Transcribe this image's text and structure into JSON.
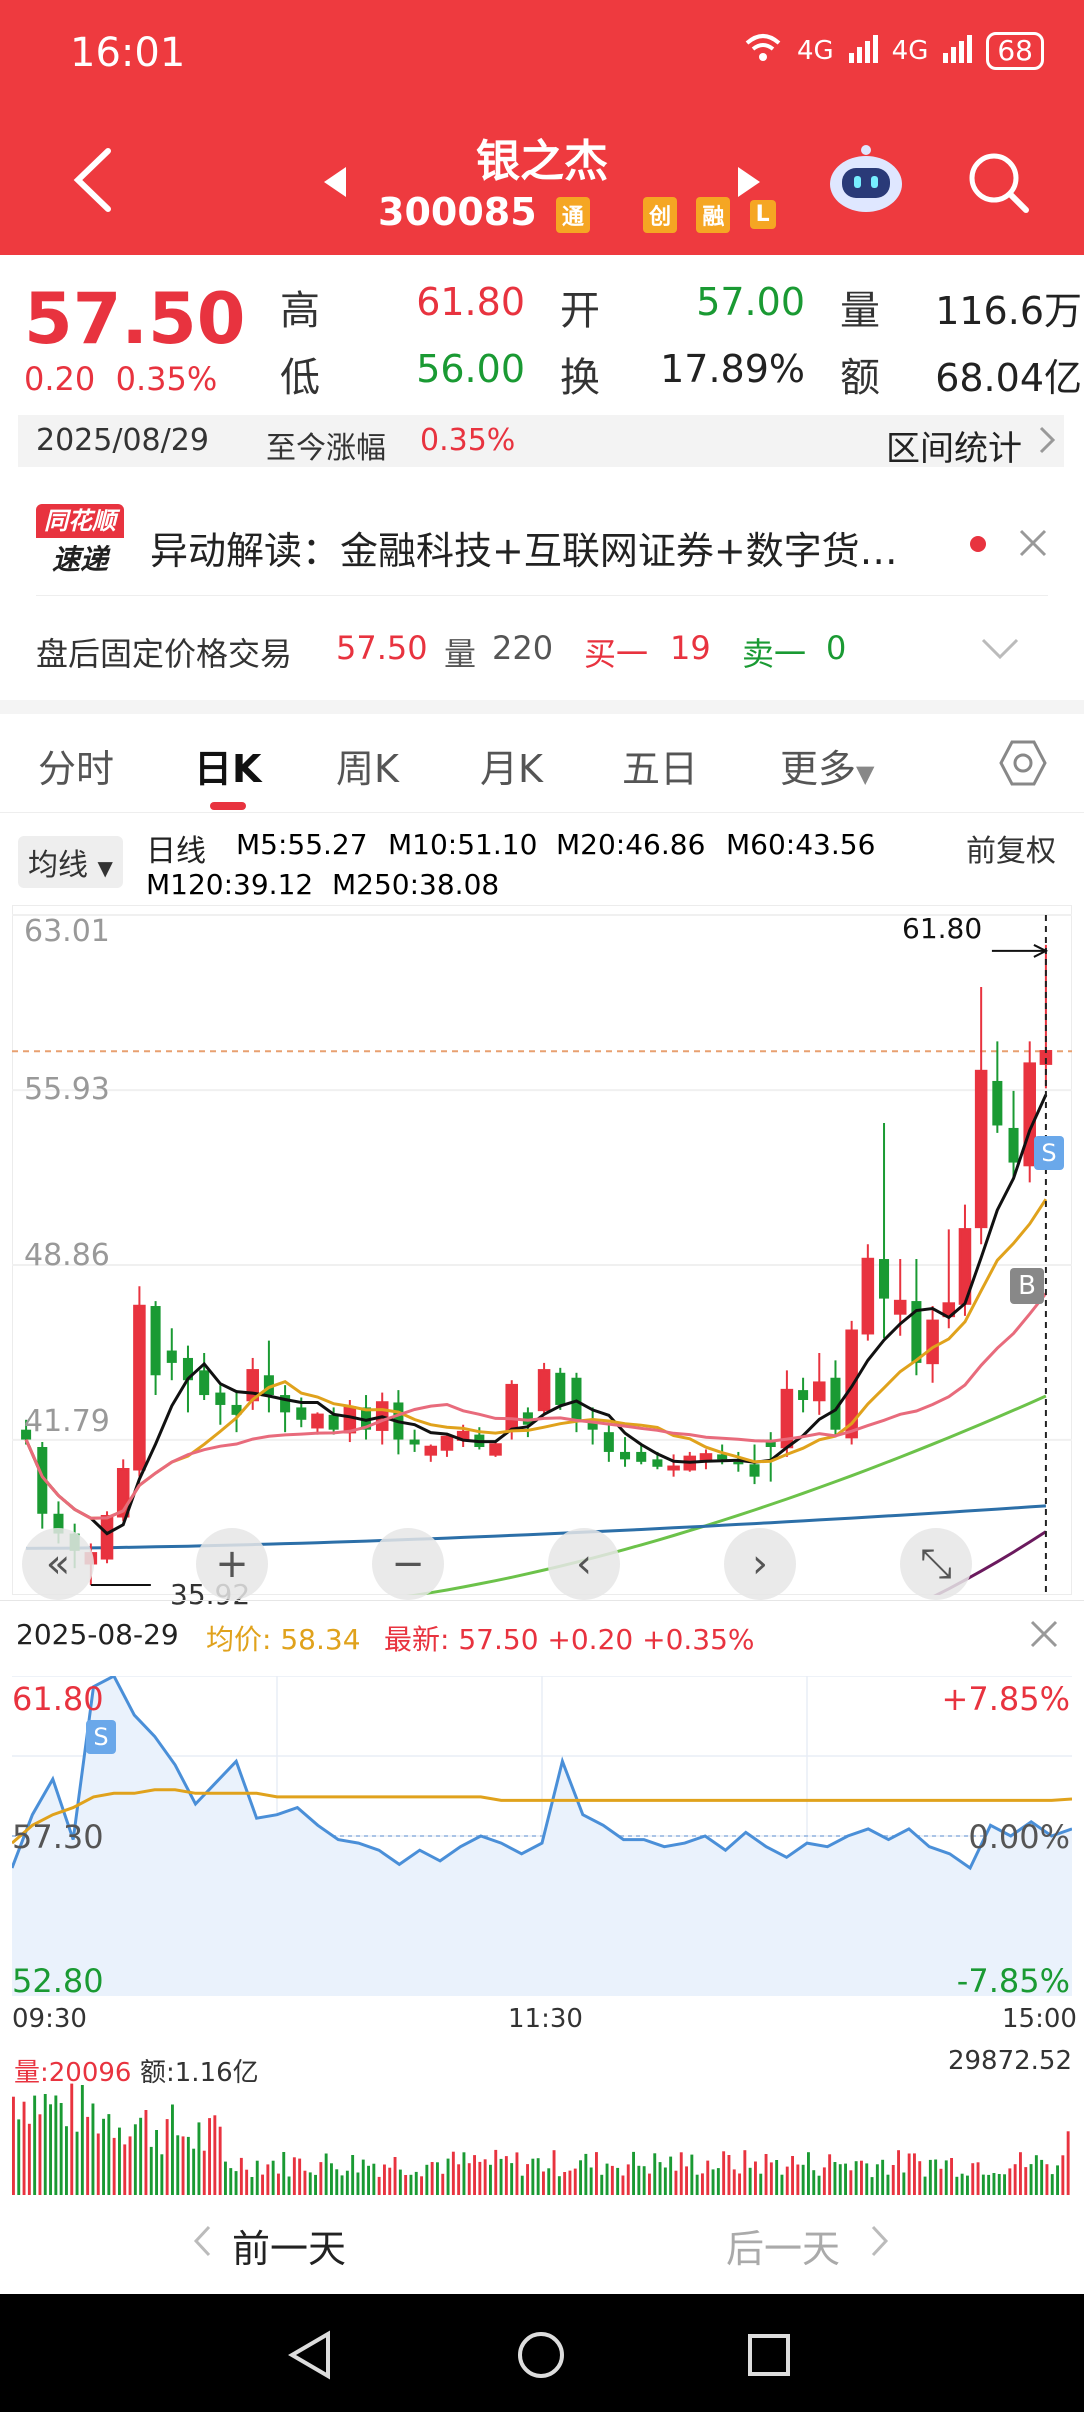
{
  "status": {
    "time": "16:01",
    "signal1": "4G",
    "signal2": "4G",
    "battery": "68"
  },
  "header": {
    "stock_name": "银之杰",
    "stock_code": "300085",
    "tags": [
      "通",
      "创",
      "融",
      "L"
    ]
  },
  "quote": {
    "price": "57.50",
    "change": "0.20",
    "change_pct": "0.35%",
    "high_label": "高",
    "high": "61.80",
    "open_label": "开",
    "open": "57.00",
    "volume_label": "量",
    "volume": "116.6万",
    "low_label": "低",
    "low": "56.00",
    "turnover_label": "换",
    "turnover": "17.89%",
    "amount_label": "额",
    "amount": "68.04亿"
  },
  "date_bar": {
    "date": "2025/08/29",
    "since_label": "至今涨幅",
    "since_value": "0.35%",
    "range_stats": "区间统计"
  },
  "news": {
    "brand_top": "同花顺",
    "brand_bottom": "速递",
    "text": "异动解读：金融科技+互联网证券+数字货…"
  },
  "after_hours": {
    "label": "盘后固定价格交易",
    "price": "57.50",
    "vol_label": "量",
    "vol": "220",
    "buy_label": "买一",
    "buy": "19",
    "sell_label": "卖一",
    "sell": "0"
  },
  "tabs": [
    "分时",
    "日K",
    "周K",
    "月K",
    "五日",
    "更多"
  ],
  "active_tab": "日K",
  "ma_legend": {
    "selector": "均线",
    "period": "日线",
    "adjust": "前复权",
    "items": [
      {
        "label": "M5:55.27",
        "color": "#111111"
      },
      {
        "label": "M10:51.10",
        "color": "#e0a21c"
      },
      {
        "label": "M20:46.86",
        "color": "#e86b7c"
      },
      {
        "label": "M60:43.56",
        "color": "#6cc24a"
      },
      {
        "label": "M120:39.12",
        "color": "#2c6fa8"
      },
      {
        "label": "M250:38.08",
        "color": "#6b1a5e"
      }
    ]
  },
  "kline": {
    "y_labels": [
      "63.01",
      "55.93",
      "48.86",
      "41.79"
    ],
    "max_label": "61.80",
    "min_label": "35.92",
    "buy_marker": "B",
    "sell_marker": "S",
    "colors": {
      "up": "#e8333f",
      "down": "#1a9a33"
    }
  },
  "controls": [
    "«",
    "+",
    "−",
    "‹",
    "›",
    "⤡"
  ],
  "intraday": {
    "date": "2025-08-29",
    "avg_label": "均价:",
    "avg": "58.34",
    "last_label": "最新:",
    "last": "57.50 +0.20 +0.35%",
    "y_top": "61.80",
    "y_mid": "57.30",
    "y_bot": "52.80",
    "pct_top": "+7.85%",
    "pct_mid": "0.00%",
    "pct_bot": "-7.85%",
    "t_start": "09:30",
    "t_mid": "11:30",
    "t_end": "15:00",
    "sell_marker": "S"
  },
  "volume": {
    "vol_label": "量:20096",
    "amt_label": "额:1.16亿",
    "max": "29872.52"
  },
  "nav": {
    "prev": "前一天",
    "next": "后一天"
  },
  "chart_data": [
    {
      "type": "candlestick",
      "title": "日线",
      "ylim": [
        35.92,
        63.01
      ],
      "ohlc": [
        [
          42.2,
          42.6,
          41.6,
          41.8
        ],
        [
          41.5,
          41.7,
          38.2,
          38.8
        ],
        [
          38.8,
          39.3,
          37.6,
          38.0
        ],
        [
          38.0,
          38.4,
          36.6,
          37.3
        ],
        [
          36.8,
          37.6,
          35.92,
          37.2
        ],
        [
          37.0,
          38.9,
          36.8,
          38.7
        ],
        [
          38.7,
          41.0,
          38.5,
          40.6
        ],
        [
          40.6,
          48.0,
          40.3,
          47.2
        ],
        [
          47.2,
          47.4,
          43.6,
          44.4
        ],
        [
          45.4,
          46.3,
          44.2,
          44.9
        ],
        [
          45.1,
          45.6,
          42.9,
          44.2
        ],
        [
          44.6,
          45.3,
          43.4,
          43.6
        ],
        [
          43.7,
          44.0,
          42.4,
          43.2
        ],
        [
          43.2,
          43.8,
          42.1,
          42.8
        ],
        [
          43.4,
          45.1,
          43.0,
          44.6
        ],
        [
          44.4,
          45.8,
          42.9,
          43.6
        ],
        [
          43.6,
          44.0,
          42.1,
          42.9
        ],
        [
          43.1,
          43.5,
          42.3,
          42.6
        ],
        [
          42.3,
          42.9,
          42.0,
          42.8
        ],
        [
          42.8,
          43.1,
          42.0,
          42.2
        ],
        [
          42.1,
          43.4,
          41.7,
          43.1
        ],
        [
          43.1,
          43.6,
          41.8,
          42.2
        ],
        [
          42.2,
          43.7,
          41.6,
          43.3
        ],
        [
          43.3,
          43.8,
          41.2,
          41.8
        ],
        [
          41.8,
          42.2,
          41.3,
          41.6
        ],
        [
          41.2,
          41.6,
          40.9,
          41.5
        ],
        [
          41.4,
          42.0,
          41.1,
          41.9
        ],
        [
          41.8,
          42.4,
          41.5,
          42.1
        ],
        [
          42.0,
          42.3,
          41.4,
          41.5
        ],
        [
          41.2,
          41.7,
          41.1,
          41.6
        ],
        [
          42.2,
          44.2,
          41.8,
          44.0
        ],
        [
          42.9,
          43.1,
          41.9,
          42.4
        ],
        [
          43.0,
          44.9,
          42.8,
          44.6
        ],
        [
          44.5,
          44.7,
          43.0,
          43.2
        ],
        [
          44.3,
          44.5,
          42.1,
          42.6
        ],
        [
          42.6,
          43.1,
          41.6,
          42.2
        ],
        [
          42.1,
          42.4,
          40.9,
          41.3
        ],
        [
          41.3,
          41.9,
          40.7,
          41.0
        ],
        [
          41.3,
          41.6,
          40.8,
          40.9
        ],
        [
          41.0,
          41.3,
          40.6,
          40.7
        ],
        [
          40.6,
          41.2,
          40.3,
          40.7
        ],
        [
          40.6,
          41.3,
          40.5,
          41.1
        ],
        [
          41.0,
          41.4,
          40.6,
          41.2
        ],
        [
          41.2,
          41.6,
          40.8,
          41.0
        ],
        [
          40.9,
          41.3,
          40.5,
          40.8
        ],
        [
          40.8,
          41.6,
          40.0,
          40.3
        ],
        [
          41.8,
          42.1,
          40.1,
          41.5
        ],
        [
          41.5,
          44.6,
          41.1,
          43.8
        ],
        [
          43.8,
          44.3,
          42.9,
          43.4
        ],
        [
          43.4,
          45.3,
          42.8,
          44.1
        ],
        [
          44.3,
          45.0,
          41.9,
          42.2
        ],
        [
          41.9,
          46.6,
          41.6,
          46.2
        ],
        [
          46.1,
          49.7,
          45.8,
          49.1
        ],
        [
          49.1,
          54.6,
          45.9,
          47.5
        ],
        [
          46.9,
          49.1,
          46.0,
          47.4
        ],
        [
          47.4,
          49.1,
          44.4,
          44.9
        ],
        [
          44.9,
          47.2,
          44.1,
          46.6
        ],
        [
          46.8,
          50.3,
          46.3,
          47.3
        ],
        [
          47.3,
          51.3,
          46.8,
          50.3
        ],
        [
          50.4,
          60.1,
          49.7,
          56.7
        ],
        [
          56.3,
          57.9,
          54.2,
          54.5
        ],
        [
          54.4,
          55.9,
          52.4,
          53.0
        ],
        [
          52.9,
          57.9,
          52.2,
          57.0
        ],
        [
          57.0,
          61.8,
          56.0,
          57.5
        ]
      ],
      "ma": {
        "M5": 55.27,
        "M10": 51.1,
        "M20": 46.86,
        "M60": 43.56,
        "M120": 39.12,
        "M250": 38.08
      }
    },
    {
      "type": "line",
      "title": "分时",
      "x_start": "09:30",
      "x_mid": "11:30",
      "x_end": "15:00",
      "ylim": [
        52.8,
        61.8
      ],
      "base": 57.3,
      "price": [
        56.4,
        57.9,
        58.9,
        57.2,
        61.5,
        61.8,
        60.7,
        60.1,
        59.3,
        58.2,
        58.8,
        59.4,
        57.8,
        57.9,
        58.1,
        57.6,
        57.2,
        57.1,
        56.9,
        56.5,
        56.9,
        56.6,
        57.0,
        57.3,
        57.1,
        56.8,
        57.1,
        59.4,
        57.9,
        57.6,
        57.2,
        57.2,
        57.0,
        57.1,
        57.3,
        56.9,
        57.4,
        57.0,
        56.7,
        57.1,
        57.0,
        57.3,
        57.5,
        57.2,
        57.5,
        57.0,
        56.8,
        56.4,
        57.6,
        57.3,
        57.7,
        57.3,
        57.5
      ],
      "avg": [
        57.1,
        57.6,
        57.9,
        58.1,
        58.4,
        58.5,
        58.5,
        58.6,
        58.6,
        58.5,
        58.5,
        58.5,
        58.5,
        58.4,
        58.4,
        58.4,
        58.4,
        58.4,
        58.4,
        58.4,
        58.4,
        58.4,
        58.4,
        58.4,
        58.3,
        58.3,
        58.3,
        58.3,
        58.3,
        58.3,
        58.3,
        58.3,
        58.3,
        58.3,
        58.3,
        58.3,
        58.3,
        58.3,
        58.3,
        58.3,
        58.3,
        58.3,
        58.3,
        58.3,
        58.3,
        58.3,
        58.3,
        58.3,
        58.3,
        58.3,
        58.3,
        58.3,
        58.34
      ]
    }
  ]
}
